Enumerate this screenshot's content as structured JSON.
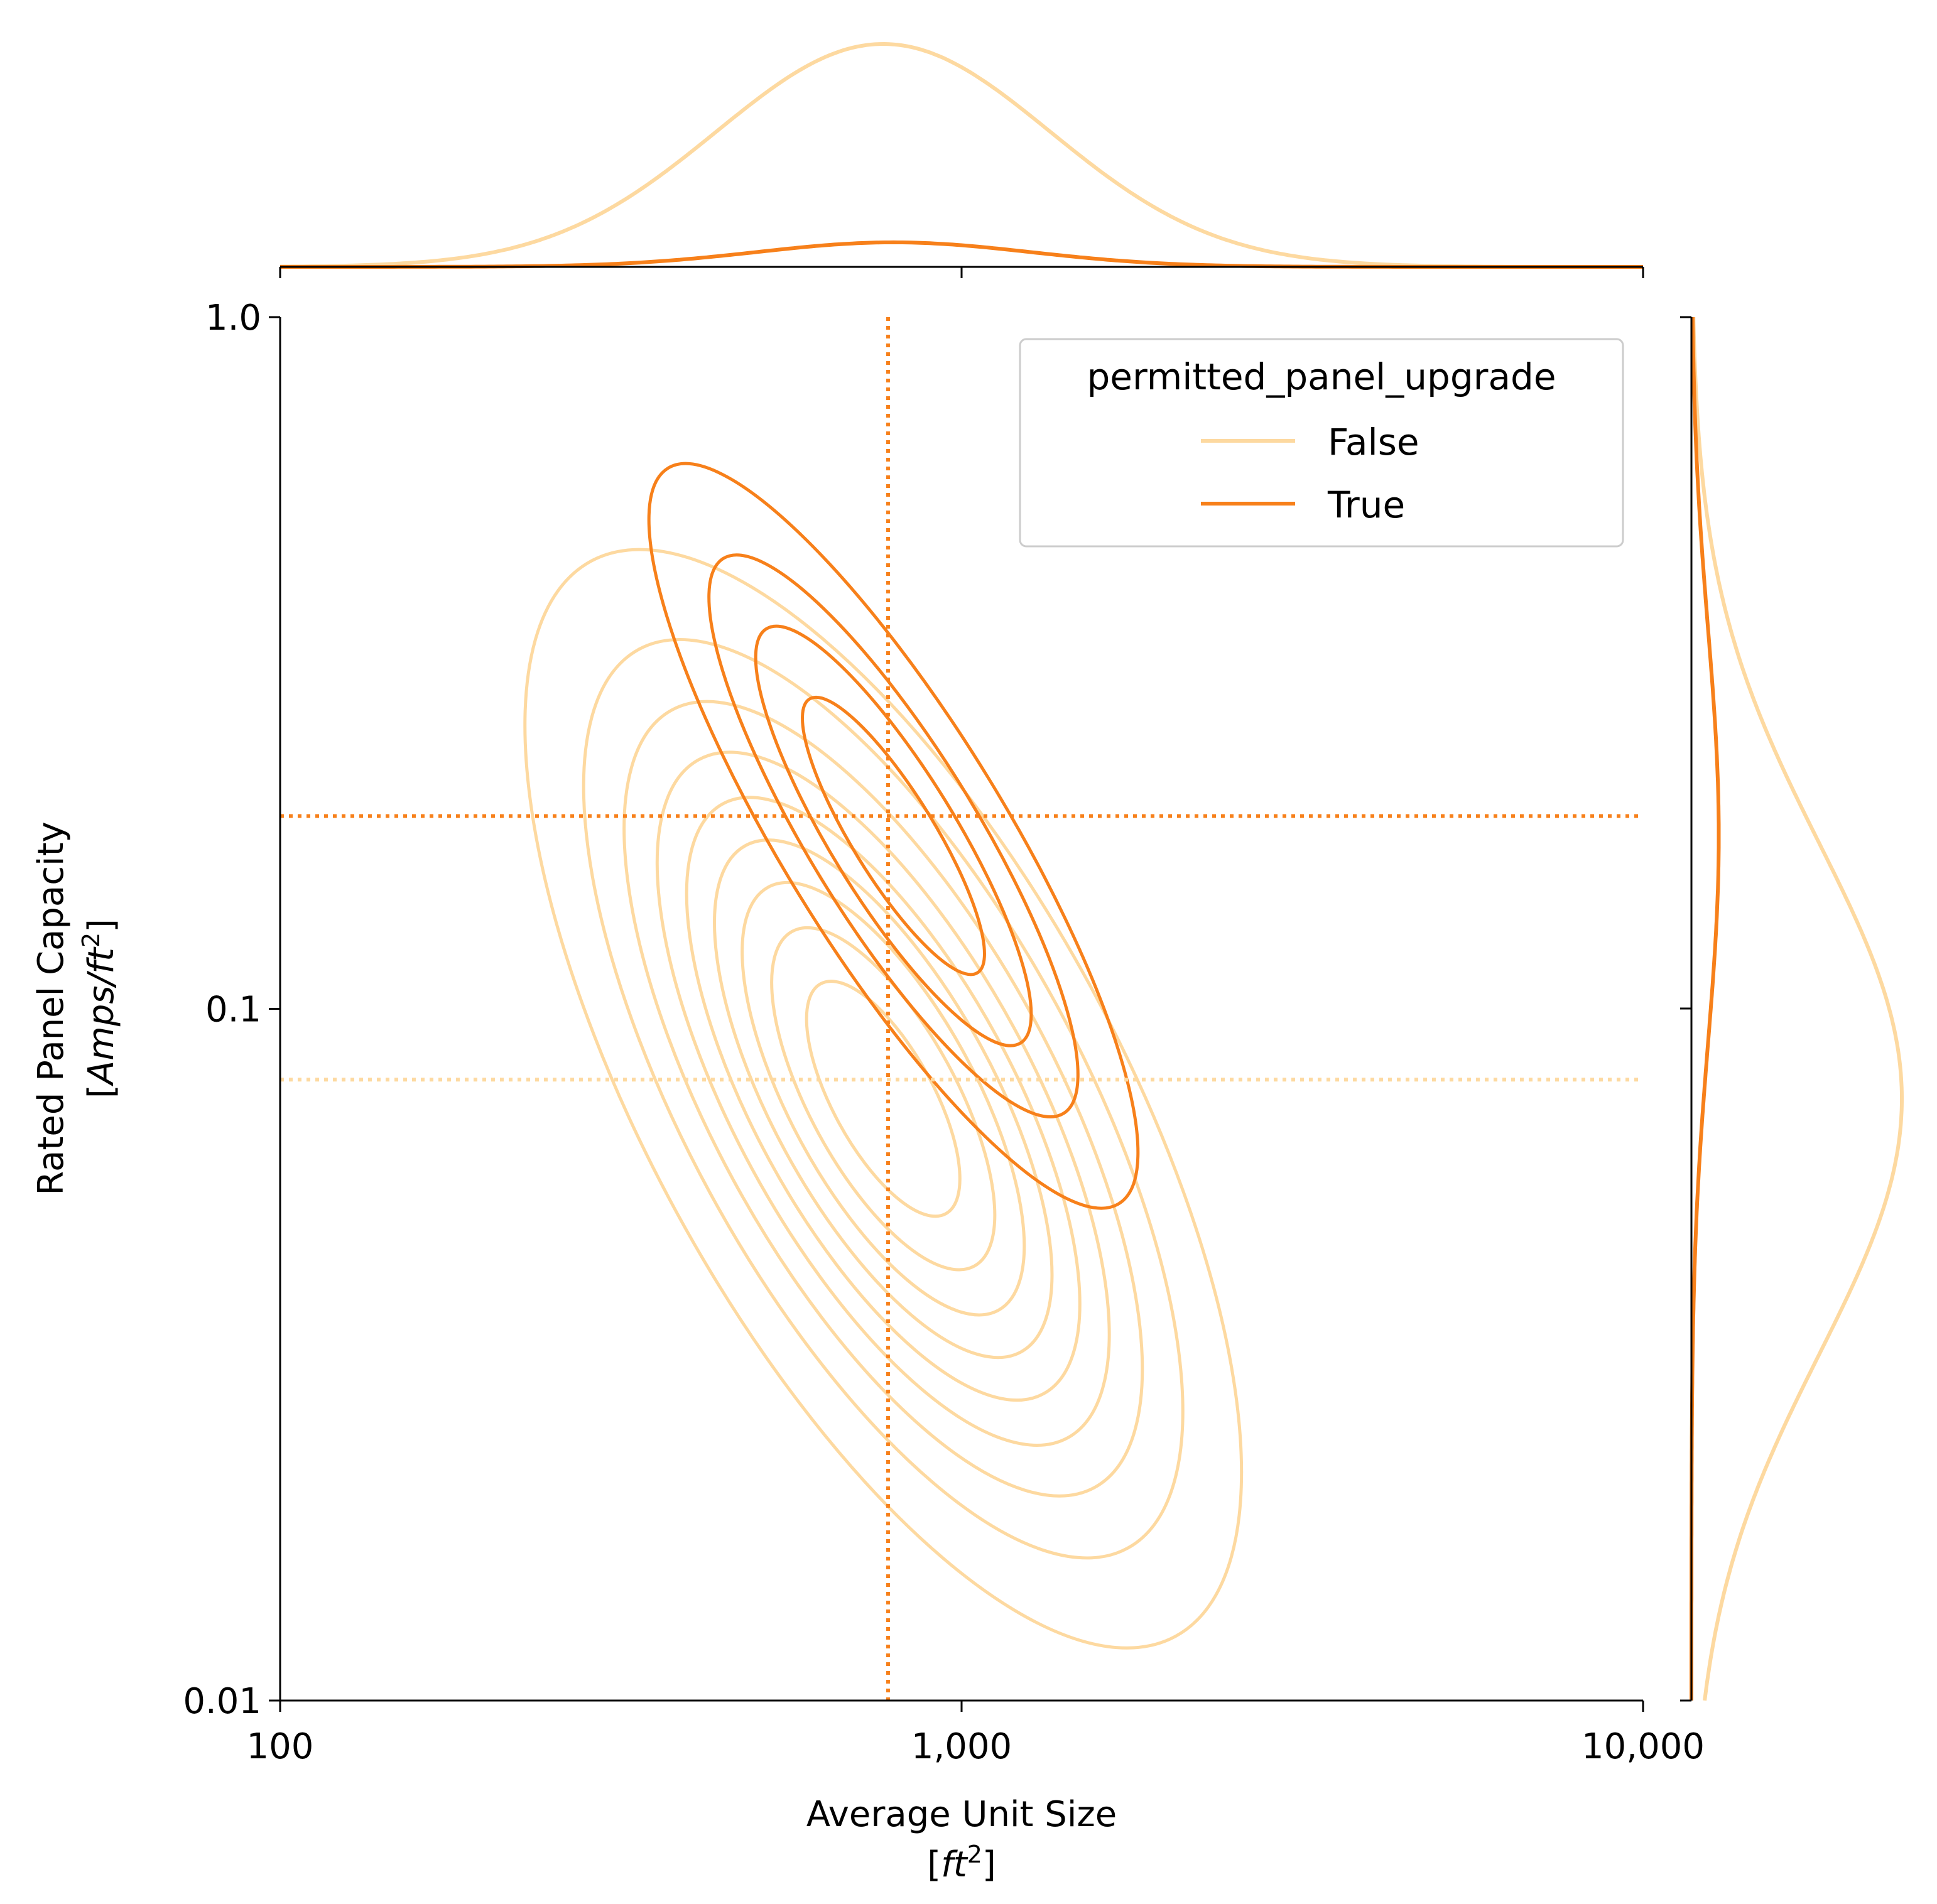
{
  "chart_data": {
    "type": "kde-joint",
    "x_scale": "log",
    "y_scale": "log",
    "xlim": [
      100,
      10000
    ],
    "ylim": [
      0.01,
      1.0
    ],
    "x_ticks": [
      {
        "value": 100,
        "label": "100"
      },
      {
        "value": 1000,
        "label": "1,000"
      },
      {
        "value": 10000,
        "label": "10,000"
      }
    ],
    "y_ticks": [
      {
        "value": 0.01,
        "label": "0.01"
      },
      {
        "value": 0.1,
        "label": "0.1"
      },
      {
        "value": 1.0,
        "label": "1.0"
      }
    ],
    "xlabel_line1": "Average Unit Size",
    "xlabel_unit": "ft",
    "xlabel_exp": "2",
    "ylabel_line1": "Rated Panel Capacity",
    "ylabel_unit": "Amps/ft",
    "ylabel_exp": "2",
    "legend": {
      "title": "permitted_panel_upgrade",
      "placement": "upper-right",
      "entries": [
        {
          "label": "False",
          "color": "#fdd9a0"
        },
        {
          "label": "True",
          "color": "#f7801a"
        }
      ]
    },
    "series": [
      {
        "name": "False",
        "color": "#fdd9a0",
        "median_x": 780,
        "median_y": 0.079,
        "kde_center": {
          "log_x": 2.885,
          "log_y": -1.13
        },
        "kde_sx": 0.245,
        "kde_sy": 0.37,
        "kde_rho": -0.68,
        "contour_levels": 9,
        "marginal_x_peak": 1.0,
        "marginal_y_peak": 1.0
      },
      {
        "name": "True",
        "color": "#f7801a",
        "median_x": 780,
        "median_y": 0.19,
        "kde_center": {
          "log_x": 2.9,
          "log_y": -0.75
        },
        "kde_sx": 0.2,
        "kde_sy": 0.3,
        "kde_rho": -0.85,
        "contour_levels": 4,
        "marginal_x_peak": 0.11,
        "marginal_y_peak": 0.13
      }
    ]
  }
}
